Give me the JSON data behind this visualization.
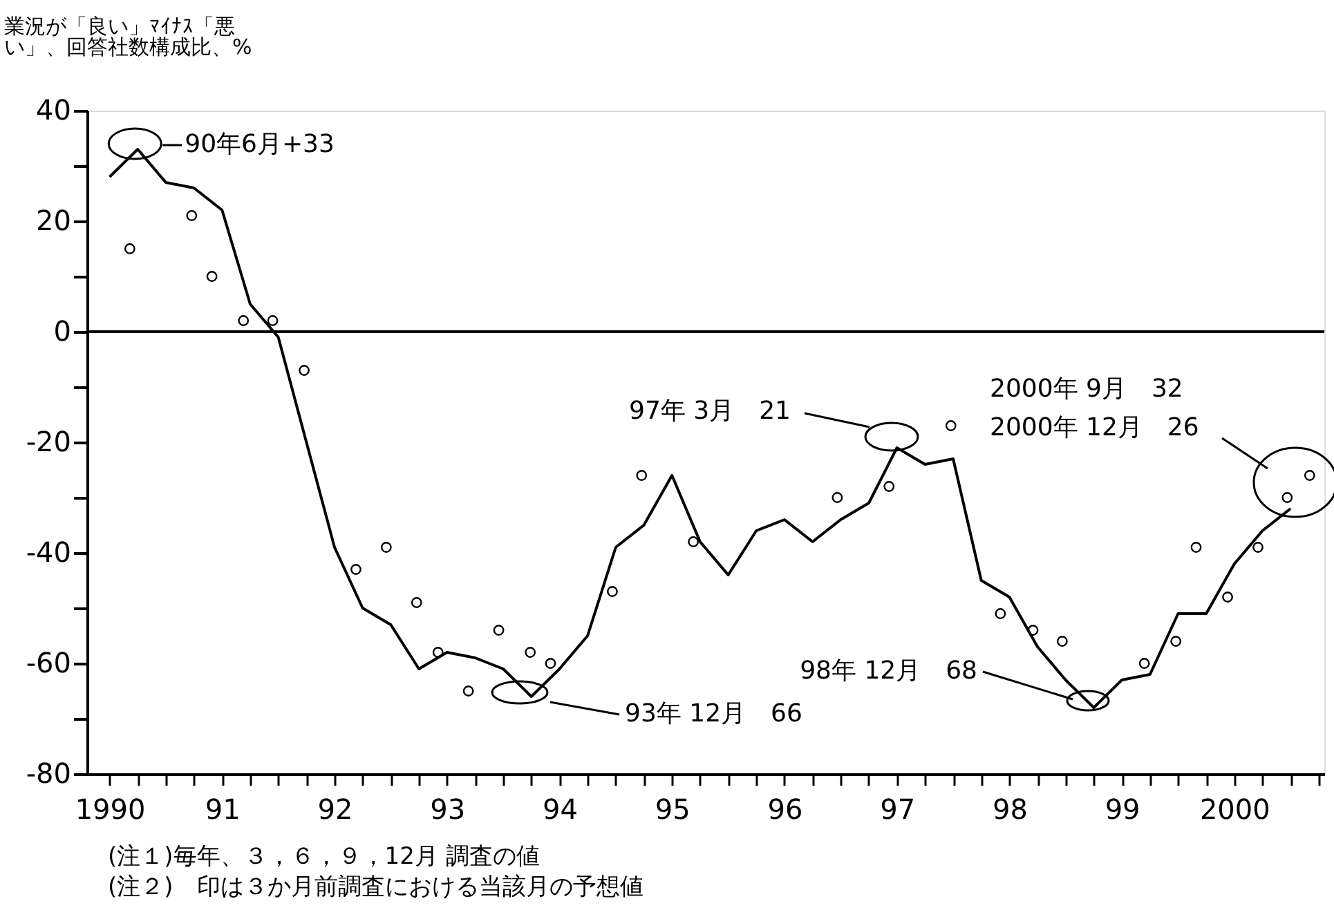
{
  "chart_data": {
    "type": "line",
    "ylabel": "業況が「良い」ﾏｲﾅｽ「悪い」、回答社数構成比、%",
    "xlim": [
      1989.8,
      2000.8
    ],
    "ylim": [
      -80,
      40
    ],
    "yticks": [
      -80,
      {
        "value": -70,
        "label": null
      },
      -60,
      {
        "value": -50,
        "label": null
      },
      -40,
      {
        "value": -30,
        "label": null
      },
      -20,
      {
        "value": -10,
        "label": null
      },
      0,
      {
        "value": 10,
        "label": null
      },
      20,
      {
        "value": 30,
        "label": null
      },
      40
    ],
    "xticks": [
      1990,
      {
        "value": 1991,
        "label": "91"
      },
      {
        "value": 1992,
        "label": "92"
      },
      {
        "value": 1993,
        "label": "93"
      },
      {
        "value": 1994,
        "label": "94"
      },
      {
        "value": 1995,
        "label": "95"
      },
      {
        "value": 1996,
        "label": "96"
      },
      {
        "value": 1997,
        "label": "97"
      },
      {
        "value": 1998,
        "label": "98"
      },
      {
        "value": 1999,
        "label": "99"
      },
      2000,
      {
        "value": 1990.25,
        "label": null
      },
      {
        "value": 1990.5,
        "label": null
      },
      {
        "value": 1990.75,
        "label": null
      },
      {
        "value": 1991.25,
        "label": null
      },
      {
        "value": 1991.5,
        "label": null
      },
      {
        "value": 1991.75,
        "label": null
      },
      {
        "value": 1992.25,
        "label": null
      },
      {
        "value": 1992.5,
        "label": null
      },
      {
        "value": 1992.75,
        "label": null
      },
      {
        "value": 1993.25,
        "label": null
      },
      {
        "value": 1993.5,
        "label": null
      },
      {
        "value": 1993.75,
        "label": null
      },
      {
        "value": 1994.25,
        "label": null
      },
      {
        "value": 1994.5,
        "label": null
      },
      {
        "value": 1994.75,
        "label": null
      },
      {
        "value": 1995.25,
        "label": null
      },
      {
        "value": 1995.5,
        "label": null
      },
      {
        "value": 1995.75,
        "label": null
      },
      {
        "value": 1996.25,
        "label": null
      },
      {
        "value": 1996.5,
        "label": null
      },
      {
        "value": 1996.75,
        "label": null
      },
      {
        "value": 1997.25,
        "label": null
      },
      {
        "value": 1997.5,
        "label": null
      },
      {
        "value": 1997.75,
        "label": null
      },
      {
        "value": 1998.25,
        "label": null
      },
      {
        "value": 1998.5,
        "label": null
      },
      {
        "value": 1998.75,
        "label": null
      },
      {
        "value": 1999.25,
        "label": null
      },
      {
        "value": 1999.5,
        "label": null
      },
      {
        "value": 1999.75,
        "label": null
      },
      {
        "value": 2000.25,
        "label": null
      },
      {
        "value": 2000.5,
        "label": null
      },
      {
        "value": 2000.75,
        "label": null
      }
    ],
    "series": [
      {
        "color": "#000000",
        "marker": "none",
        "line_style": "solid",
        "x": [
          1990,
          1990.25,
          1990.5,
          1990.75,
          1991,
          1991.25,
          1991.5,
          1991.75,
          1992,
          1992.25,
          1992.5,
          1992.75,
          1993,
          1993.25,
          1993.5,
          1993.75,
          1994,
          1994.25,
          1994.5,
          1994.75,
          1995,
          1995.25,
          1995.5,
          1995.75,
          1996,
          1996.25,
          1996.5,
          1996.75,
          1997,
          1997.25,
          1997.5,
          1997.75,
          1998,
          1998.25,
          1998.5,
          1998.75,
          1999,
          1999.25,
          1999.5,
          1999.75,
          2000,
          2000.25,
          2000.5
        ],
        "values": [
          28,
          33,
          27,
          26,
          22,
          5,
          -1,
          -20,
          -39,
          -50,
          -53,
          -61,
          -58,
          -59,
          -61,
          -66,
          -61,
          -55,
          -39,
          -35,
          -26,
          -38,
          -44,
          -36,
          -34,
          -38,
          -34,
          -31,
          -21,
          -24,
          -23,
          -45,
          -48,
          -57,
          -63,
          -68,
          -63,
          -62,
          -51,
          -51,
          -42,
          -36,
          -32
        ]
      },
      {
        "type": "scatter",
        "color": "#000000",
        "marker": "circle",
        "x": [
          1990.18,
          1990.73,
          1990.91,
          1991.19,
          1991.45,
          1991.73,
          1992.19,
          1992.46,
          1992.73,
          1992.92,
          1993.19,
          1993.46,
          1993.74,
          1993.92,
          1994.47,
          1994.73,
          1995.19,
          1996.47,
          1996.93,
          1997.48,
          1997.92,
          1998.21,
          1998.47,
          1999.2,
          1999.48,
          1999.66,
          1999.94,
          2000.21,
          2000.47,
          2000.67
        ],
        "values": [
          15,
          21,
          10,
          2,
          2,
          -7,
          -43,
          -39,
          -49,
          -58,
          -65,
          -54,
          -58,
          -60,
          -47,
          -26,
          -38,
          -30,
          -28,
          -17,
          -51,
          -54,
          -56,
          -60,
          -56,
          -39,
          -48,
          -39,
          -30,
          -26
        ]
      }
    ],
    "ref_lines": [
      {
        "axis": "y",
        "value": 0,
        "color": "#000000"
      }
    ],
    "annotations": [
      {
        "text": "90年6月+33",
        "x": 1990.25,
        "y": 33
      },
      "93年 12月　66",
      "97年 3月　21",
      "98年 12月　68",
      "2000年 9月　32",
      "2000年 12月　26",
      "(注１)毎年、３，６，９，12月 調査の値",
      "(注２)　印は３か月前調査における当該月の予想値"
    ],
    "grid": false
  }
}
